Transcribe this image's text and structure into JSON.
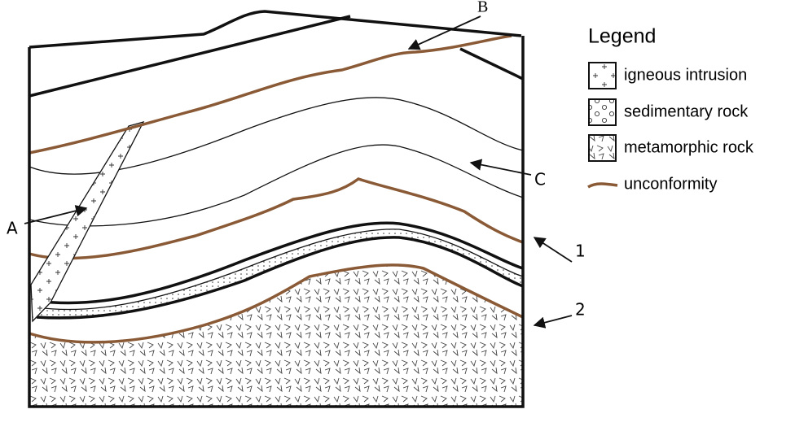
{
  "callouts": [
    "A",
    "B",
    "C",
    "1",
    "2"
  ],
  "legend": {
    "title": "Legend",
    "items": [
      "igneous intrusion",
      "sedimentary rock",
      "metamorphic rock",
      "unconformity"
    ]
  }
}
